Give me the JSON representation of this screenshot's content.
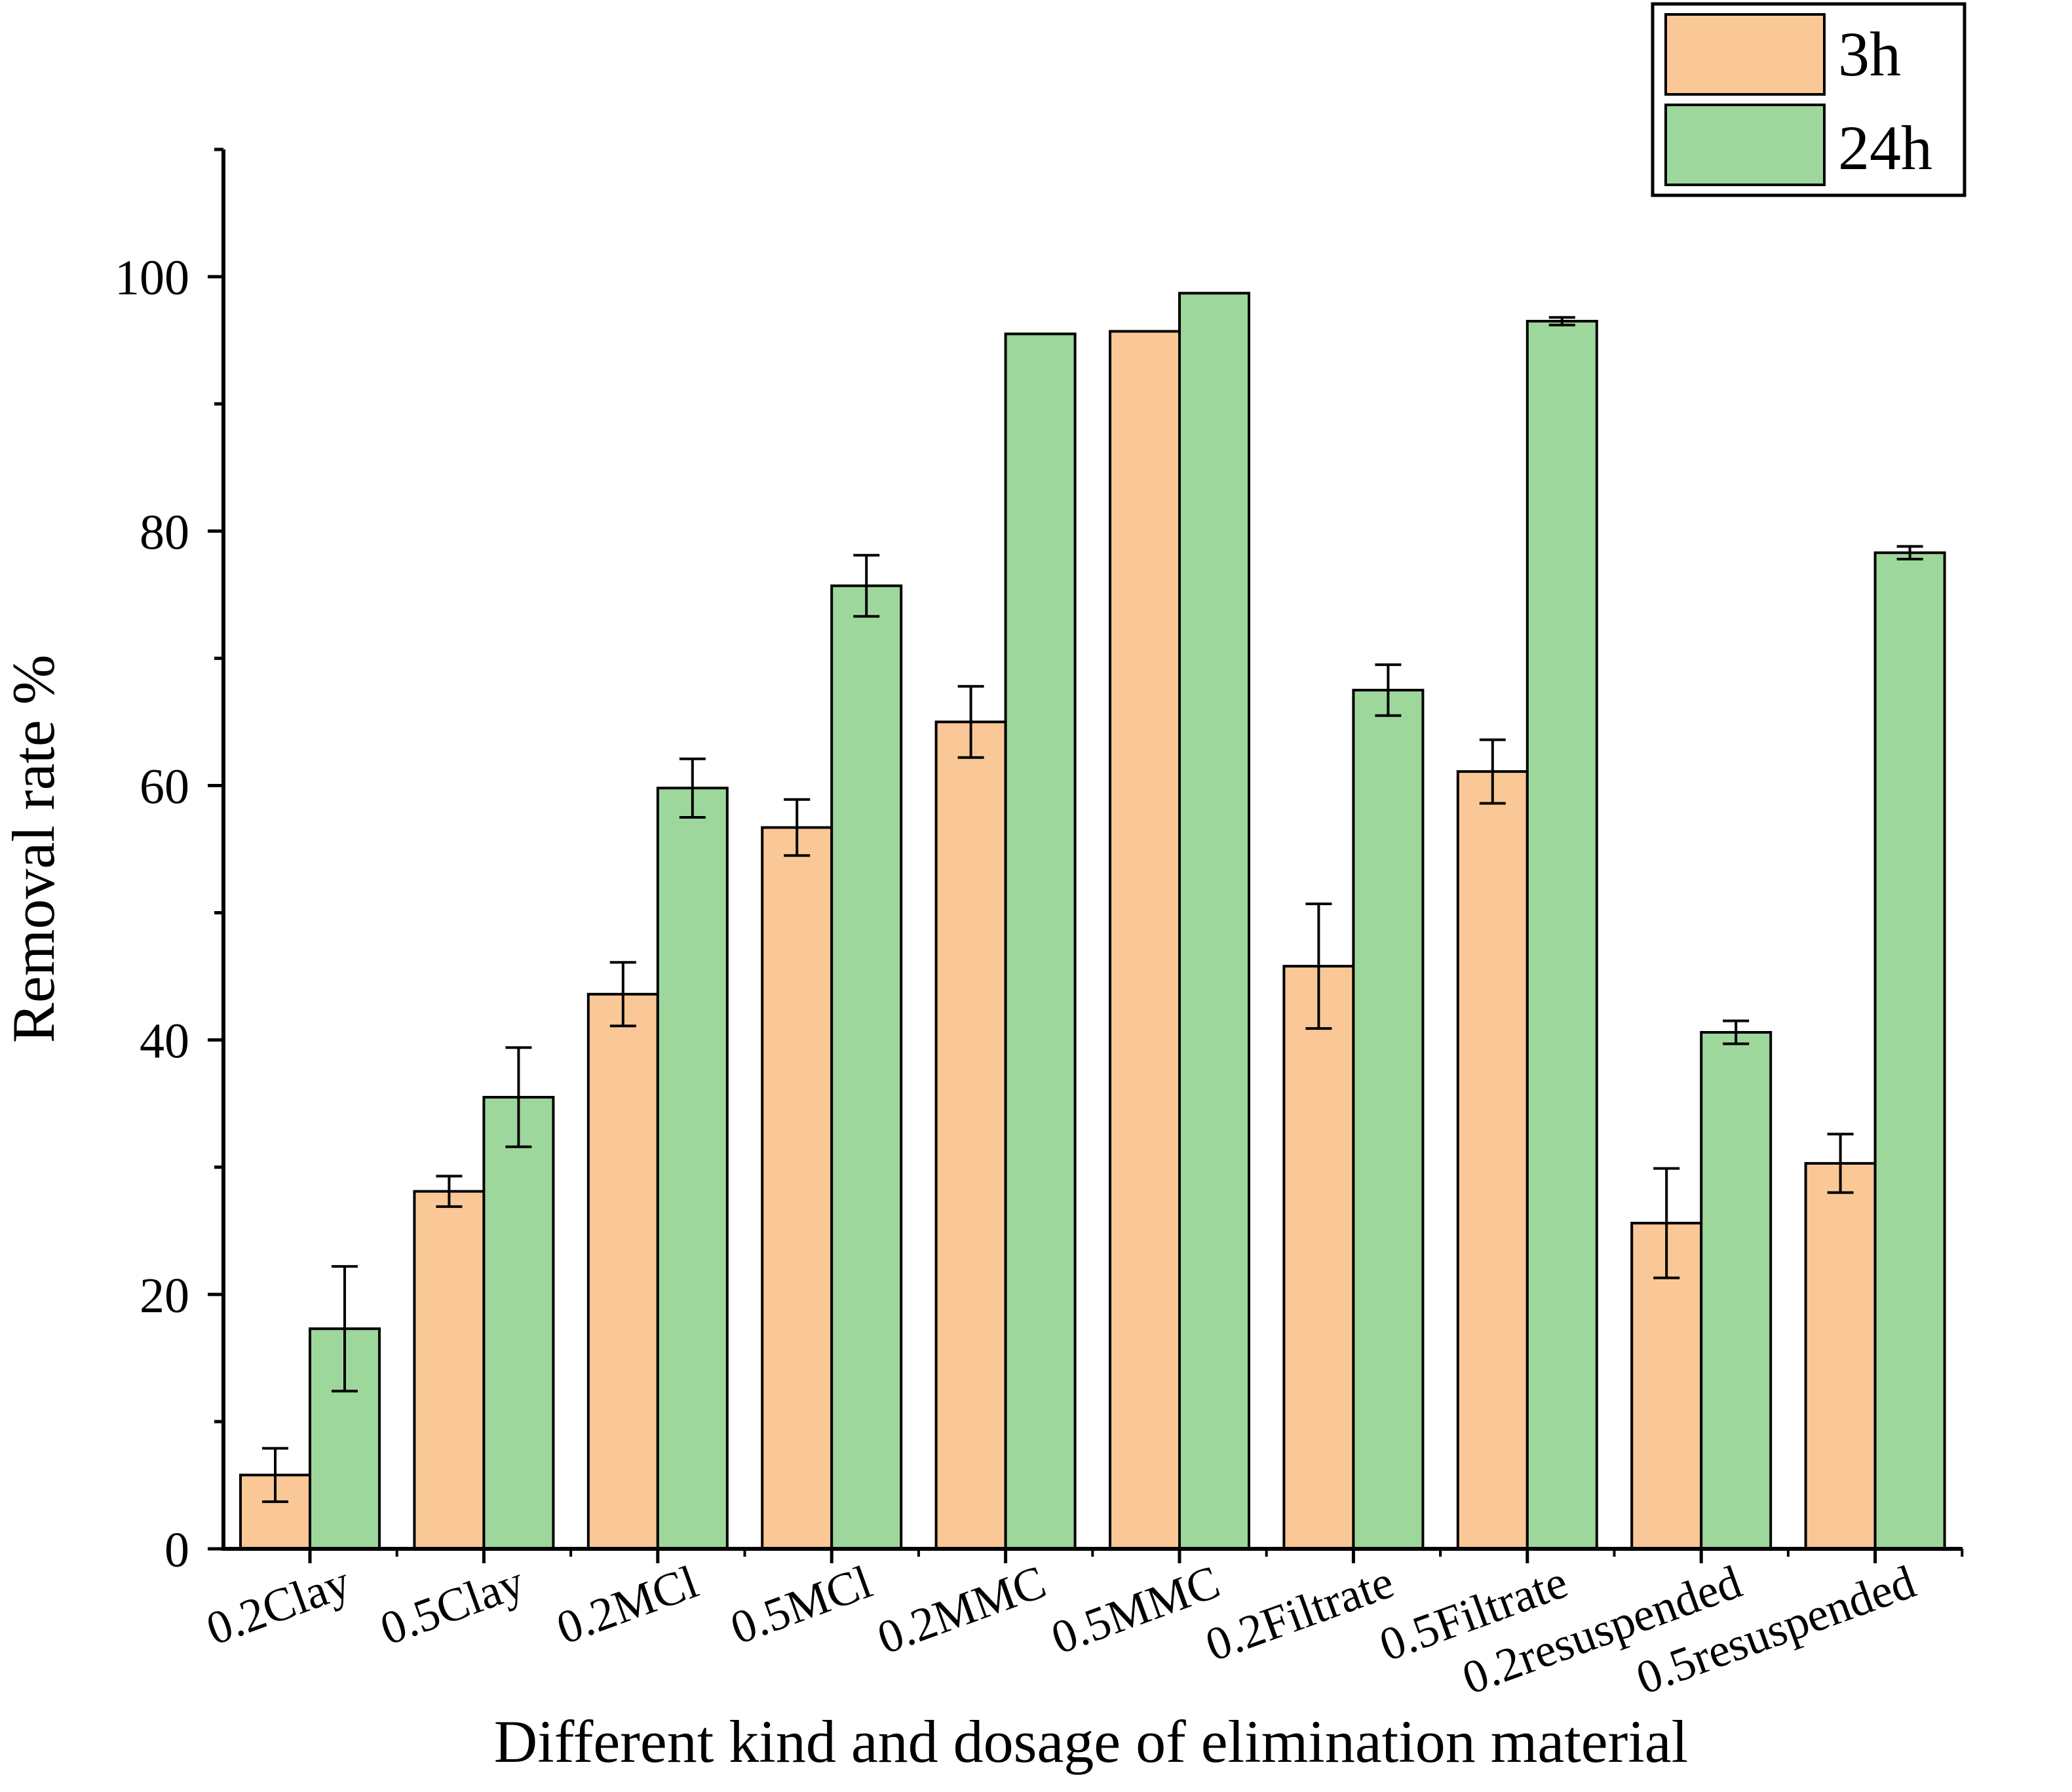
{
  "chart_data": {
    "type": "bar",
    "title": "",
    "xlabel": "Different kind and dosage of elimination material",
    "ylabel": "Removal rate %",
    "ylim": [
      0,
      110
    ],
    "yticks": [
      0,
      20,
      40,
      60,
      80,
      100
    ],
    "ytick_labels": [
      "0",
      "20",
      "40",
      "60",
      "80",
      "100"
    ],
    "minor_ytick_step": 10,
    "grid": false,
    "legend_position": "top-right",
    "categories": [
      "0.2Clay",
      "0.5Clay",
      "0.2MCl",
      "0.5MCl",
      "0.2MMC",
      "0.5MMC",
      "0.2Filtrate",
      "0.5Filtrate",
      "0.2resuspended",
      "0.5resuspended"
    ],
    "series": [
      {
        "name": "3h",
        "color": "#f9c896",
        "values": [
          5.8,
          28.1,
          43.6,
          56.7,
          65.0,
          95.7,
          45.8,
          61.1,
          25.6,
          30.3
        ],
        "errors": [
          2.1,
          1.2,
          2.5,
          2.2,
          2.8,
          null,
          4.9,
          2.5,
          4.3,
          2.3
        ]
      },
      {
        "name": "24h",
        "color": "#9ed79b",
        "values": [
          17.3,
          35.5,
          59.8,
          75.7,
          95.5,
          98.7,
          67.5,
          96.5,
          40.6,
          78.3
        ],
        "errors": [
          4.9,
          3.9,
          2.3,
          2.4,
          null,
          null,
          2.0,
          0.3,
          0.9,
          0.5
        ]
      }
    ]
  }
}
